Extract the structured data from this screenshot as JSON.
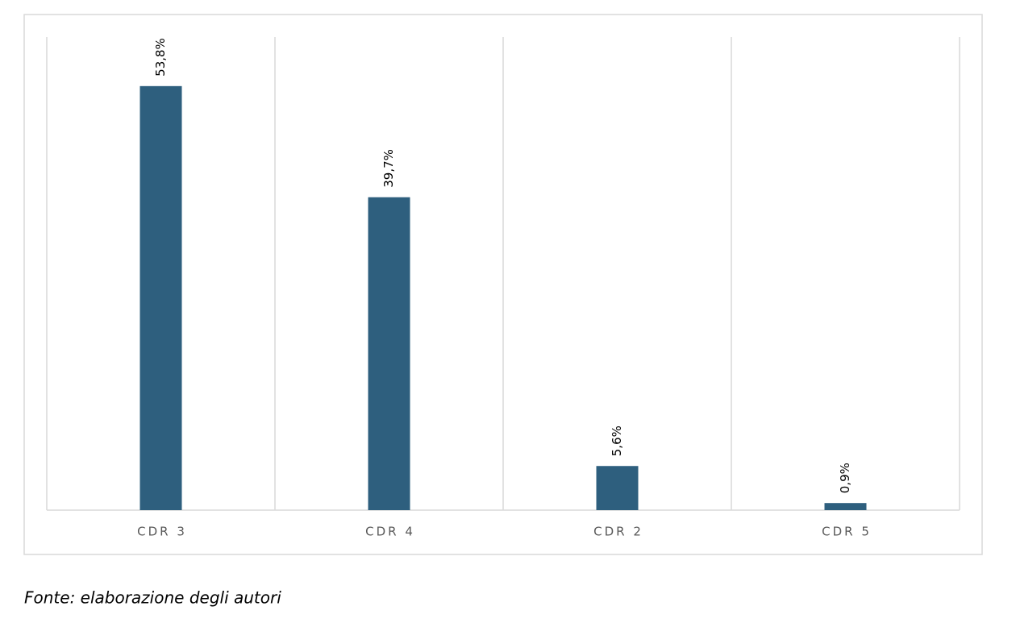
{
  "chart_data": {
    "type": "bar",
    "categories": [
      "CDR 3",
      "CDR 4",
      "CDR 2",
      "CDR 5"
    ],
    "values": [
      53.8,
      39.7,
      5.6,
      0.9
    ],
    "value_labels": [
      "53,8%",
      "39,7%",
      "5,6%",
      "0,9%"
    ],
    "color": "#2e5f7e",
    "source": "Fonte: elaborazione degli autori"
  }
}
